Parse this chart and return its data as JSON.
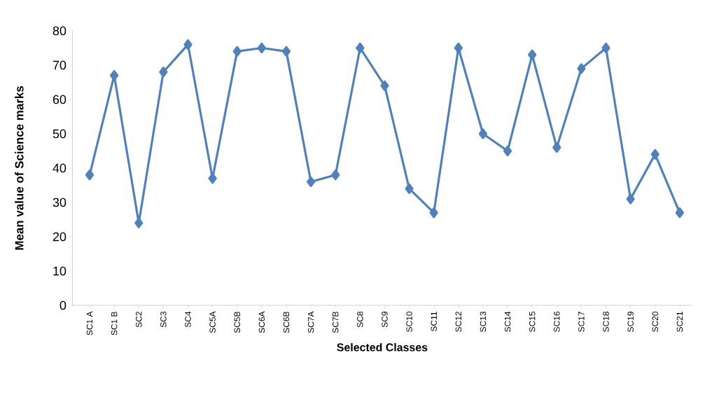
{
  "chart_data": {
    "type": "line",
    "xlabel": "Selected Classes",
    "ylabel": "Mean value of Science marks",
    "categories": [
      "SC1 A",
      "SC1 B",
      "SC2",
      "SC3",
      "SC4",
      "SC5A",
      "SC5B",
      "SC6A",
      "SC6B",
      "SC7A",
      "SC7B",
      "SC8",
      "SC9",
      "SC10",
      "SC11",
      "SC12",
      "SC13",
      "SC14",
      "SC15",
      "SC16",
      "SC17",
      "SC18",
      "SC19",
      "SC20",
      "SC21"
    ],
    "values": [
      38,
      67,
      24,
      68,
      76,
      37,
      74,
      75,
      74,
      36,
      38,
      75,
      64,
      34,
      27,
      75,
      50,
      45,
      73,
      46,
      69,
      75,
      31,
      44,
      27
    ],
    "color": "#4f81bd",
    "marker": "diamond",
    "line_style": "solid",
    "ylim": [
      0,
      80
    ],
    "yticks": [
      0,
      10,
      20,
      30,
      40,
      50,
      60,
      70,
      80
    ]
  }
}
